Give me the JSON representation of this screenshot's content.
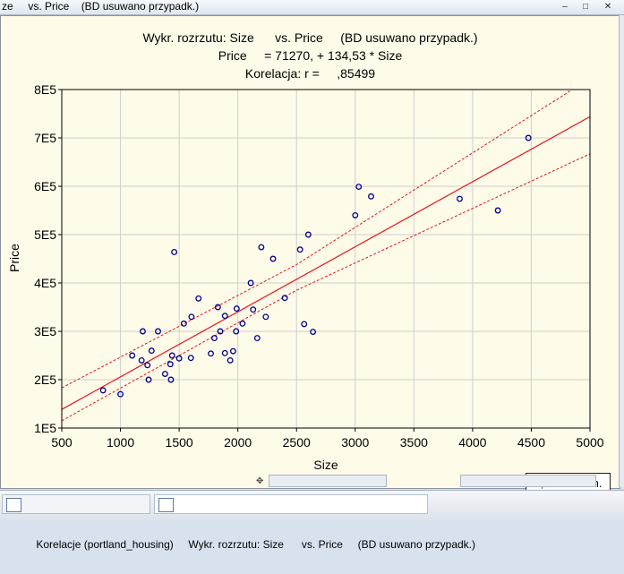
{
  "window": {
    "title": "ze     vs. Price    (BD usuwano przypadk.)",
    "controls": [
      "–",
      "□",
      "✕"
    ]
  },
  "chart_data": {
    "type": "scatter",
    "title_lines": [
      "Wykr. rozrzutu: Size      vs. Price     (BD usuwano przypadk.)",
      "Price     = 71270, + 134,53 * Size",
      "Korelacja: r =     ,85499"
    ],
    "xlabel": "Size",
    "ylabel": "Price",
    "xlim": [
      500,
      5000
    ],
    "ylim": [
      100000,
      800000
    ],
    "xticks": [
      500,
      1000,
      1500,
      2000,
      2500,
      3000,
      3500,
      4000,
      4500,
      5000
    ],
    "yticks": [
      {
        "value": 100000,
        "label": "1E5"
      },
      {
        "value": 200000,
        "label": "2E5"
      },
      {
        "value": 300000,
        "label": "3E5"
      },
      {
        "value": 400000,
        "label": "4E5"
      },
      {
        "value": 500000,
        "label": "5E5"
      },
      {
        "value": 600000,
        "label": "6E5"
      },
      {
        "value": 700000,
        "label": "7E5"
      },
      {
        "value": 800000,
        "label": "8E5"
      }
    ],
    "grid": true,
    "regression": {
      "intercept": 71270,
      "slope": 134.53,
      "color": "#e8141c"
    },
    "confidence_band": {
      "label": "0,95 Prz.Ufn.",
      "upper": [
        [
          500,
          183000
        ],
        [
          2500,
          438000
        ],
        [
          4850,
          800000
        ]
      ],
      "lower": [
        [
          500,
          115000
        ],
        [
          2500,
          385000
        ],
        [
          5000,
          667000
        ]
      ]
    },
    "point_color": "#00008b",
    "points": [
      [
        852,
        178000
      ],
      [
        1000,
        170000
      ],
      [
        1100,
        250000
      ],
      [
        1180,
        240000
      ],
      [
        1190,
        300000
      ],
      [
        1230,
        230000
      ],
      [
        1240,
        200000
      ],
      [
        1265,
        260000
      ],
      [
        1320,
        300000
      ],
      [
        1380,
        212000
      ],
      [
        1425,
        232000
      ],
      [
        1430,
        200000
      ],
      [
        1440,
        250000
      ],
      [
        1458,
        464000
      ],
      [
        1500,
        244000
      ],
      [
        1540,
        316000
      ],
      [
        1600,
        245000
      ],
      [
        1605,
        330000
      ],
      [
        1665,
        368000
      ],
      [
        1770,
        254000
      ],
      [
        1800,
        286000
      ],
      [
        1830,
        350000
      ],
      [
        1850,
        300000
      ],
      [
        1890,
        255000
      ],
      [
        1890,
        332000
      ],
      [
        1935,
        240000
      ],
      [
        1960,
        259000
      ],
      [
        1985,
        300000
      ],
      [
        1990,
        347000
      ],
      [
        2040,
        316000
      ],
      [
        2110,
        400000
      ],
      [
        2130,
        345000
      ],
      [
        2165,
        286000
      ],
      [
        2200,
        474000
      ],
      [
        2238,
        330000
      ],
      [
        2300,
        450000
      ],
      [
        2400,
        369000
      ],
      [
        2530,
        469000
      ],
      [
        2565,
        315000
      ],
      [
        2600,
        500000
      ],
      [
        2640,
        299000
      ],
      [
        3000,
        540000
      ],
      [
        3030,
        599000
      ],
      [
        3135,
        579000
      ],
      [
        3890,
        574000
      ],
      [
        4215,
        550000
      ],
      [
        4475,
        700000
      ]
    ]
  },
  "status": {
    "confidence_label": "0,95 Prz.Ufn."
  },
  "taskbar": {
    "items": [
      {
        "label": "Korelacje (portland_housing)"
      },
      {
        "label": "Wykr. rozrzutu: Size      vs. Price     (BD usuwano przypadk.)"
      }
    ]
  }
}
